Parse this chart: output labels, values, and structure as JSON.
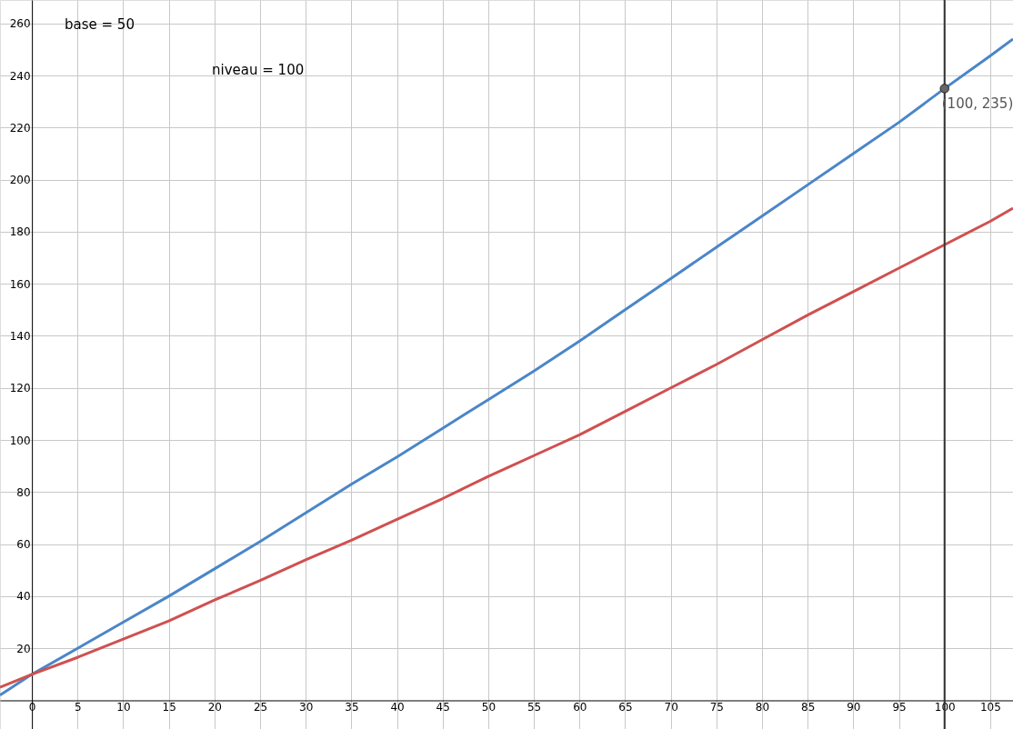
{
  "chart_data": {
    "type": "line",
    "x": [
      -3.5,
      0,
      5,
      10,
      15,
      20,
      25,
      30,
      35,
      40,
      45,
      50,
      55,
      60,
      65,
      70,
      75,
      80,
      85,
      90,
      95,
      100,
      105,
      107.5
    ],
    "series": [
      {
        "color": "#4a86c8",
        "values": [
          2,
          10,
          20,
          30,
          40,
          50.5,
          61,
          72,
          83,
          93.5,
          104.5,
          115.5,
          126.5,
          138,
          150,
          162,
          174,
          186,
          198,
          210,
          222,
          235,
          247.5,
          254
        ]
      },
      {
        "color": "#d05050",
        "values": [
          5,
          10,
          16.5,
          23.5,
          30.5,
          38.5,
          46,
          54,
          61.5,
          69.5,
          77.5,
          86,
          94,
          102,
          111,
          120,
          129,
          138.5,
          148,
          157,
          166,
          175,
          184,
          189
        ]
      }
    ],
    "xlim": [
      -3.5,
      107.5
    ],
    "ylim": [
      -11,
      269
    ],
    "xticks": [
      0,
      5,
      10,
      15,
      20,
      25,
      30,
      35,
      40,
      45,
      50,
      55,
      60,
      65,
      70,
      75,
      80,
      85,
      90,
      95,
      100,
      105
    ],
    "yticks": [
      20,
      40,
      60,
      80,
      100,
      120,
      140,
      160,
      180,
      200,
      220,
      240,
      260
    ],
    "grid": true,
    "marker": "none",
    "line_style": "solid",
    "ref_lines": [
      {
        "axis": "x",
        "value": 100,
        "color": "#333333"
      }
    ],
    "annotations": [
      "base = 50",
      "niveau = 100",
      {
        "text": "(100, 235)",
        "x": 100,
        "y": 235
      }
    ]
  }
}
